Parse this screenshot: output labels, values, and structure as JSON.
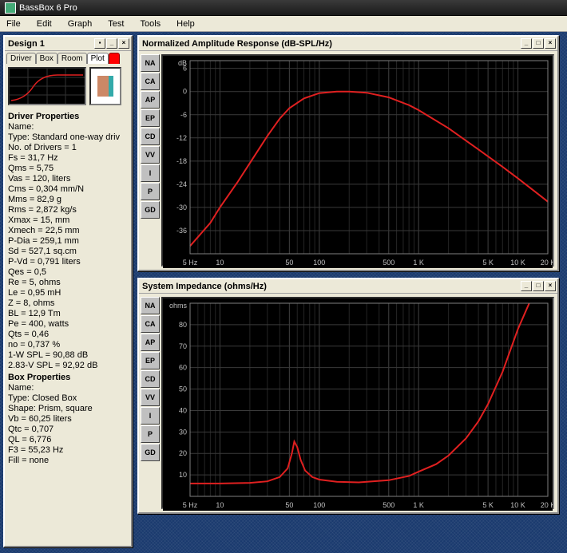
{
  "app": {
    "title": "BassBox 6 Pro",
    "menu": [
      "File",
      "Edit",
      "Graph",
      "Test",
      "Tools",
      "Help"
    ]
  },
  "design_panel": {
    "title": "Design 1",
    "tabs": [
      "Driver",
      "Box",
      "Room",
      "Plot"
    ],
    "active_tab": 3,
    "plot_color": "#ff0000",
    "driver_props": {
      "header": "Driver Properties",
      "lines": [
        "Name:",
        "Type: Standard one-way driv",
        "No. of Drivers = 1",
        "Fs = 31,7 Hz",
        "Qms = 5,75",
        "Vas = 120, liters",
        "Cms = 0,304 mm/N",
        "Mms = 82,9 g",
        "Rms = 2,872 kg/s",
        "Xmax = 15, mm",
        "Xmech = 22,5 mm",
        "P-Dia = 259,1 mm",
        "Sd = 527,1 sq.cm",
        "P-Vd = 0,791 liters",
        "Qes = 0,5",
        "Re = 5, ohms",
        "Le = 0,95 mH",
        "Z = 8, ohms",
        "BL = 12,9 Tm",
        "Pe = 400, watts",
        "Qts = 0,46",
        "no = 0,737 %",
        "1-W SPL = 90,88 dB",
        "2.83-V SPL = 92,92 dB"
      ]
    },
    "box_props": {
      "header": "Box Properties",
      "lines": [
        "Name:",
        "Type: Closed Box",
        "Shape: Prism, square",
        "Vb = 60,25 liters",
        "Qtc = 0,707",
        "QL = 6,776",
        "F3 = 55,23 Hz",
        "Fill = none"
      ]
    }
  },
  "side_buttons": [
    "NA",
    "CA",
    "AP",
    "EP",
    "CD",
    "VV",
    "I",
    "P",
    "GD"
  ],
  "amplitude_chart": {
    "title": "Normalized Amplitude Response (dB-SPL/Hz)",
    "y_unit": "dB",
    "y_ticks": [
      6,
      0,
      -6,
      -12,
      -18,
      -24,
      -30,
      -36
    ],
    "y_min": -42,
    "y_max": 8,
    "x_ticks": [
      {
        "v": 5,
        "label": "5 Hz"
      },
      {
        "v": 10,
        "label": "10"
      },
      {
        "v": 50,
        "label": "50"
      },
      {
        "v": 100,
        "label": "100"
      },
      {
        "v": 500,
        "label": "500"
      },
      {
        "v": 1000,
        "label": "1 K"
      },
      {
        "v": 5000,
        "label": "5 K"
      },
      {
        "v": 10000,
        "label": "10 K"
      },
      {
        "v": 20000,
        "label": "20 K"
      }
    ],
    "x_min": 5,
    "x_max": 20000,
    "data": [
      {
        "x": 5,
        "y": -40
      },
      {
        "x": 8,
        "y": -34
      },
      {
        "x": 10,
        "y": -30
      },
      {
        "x": 15,
        "y": -23.5
      },
      {
        "x": 20,
        "y": -18.5
      },
      {
        "x": 30,
        "y": -11.5
      },
      {
        "x": 40,
        "y": -7
      },
      {
        "x": 50,
        "y": -4.3
      },
      {
        "x": 70,
        "y": -1.8
      },
      {
        "x": 100,
        "y": -0.4
      },
      {
        "x": 150,
        "y": 0
      },
      {
        "x": 200,
        "y": 0
      },
      {
        "x": 300,
        "y": -0.3
      },
      {
        "x": 500,
        "y": -1.5
      },
      {
        "x": 800,
        "y": -3.5
      },
      {
        "x": 1000,
        "y": -4.8
      },
      {
        "x": 2000,
        "y": -9.5
      },
      {
        "x": 4000,
        "y": -15
      },
      {
        "x": 7000,
        "y": -19.5
      },
      {
        "x": 10000,
        "y": -22.5
      },
      {
        "x": 15000,
        "y": -26
      },
      {
        "x": 20000,
        "y": -28.5
      }
    ],
    "line_color": "#e02020",
    "grid_color": "#3a3a3a",
    "bg_color": "#000000"
  },
  "impedance_chart": {
    "title": "System Impedance (ohms/Hz)",
    "y_unit": "ohms",
    "y_ticks": [
      10,
      20,
      30,
      40,
      50,
      60,
      70,
      80
    ],
    "y_min": 0,
    "y_max": 90,
    "x_ticks": [
      {
        "v": 5,
        "label": "5 Hz"
      },
      {
        "v": 10,
        "label": "10"
      },
      {
        "v": 50,
        "label": "50"
      },
      {
        "v": 100,
        "label": "100"
      },
      {
        "v": 500,
        "label": "500"
      },
      {
        "v": 1000,
        "label": "1 K"
      },
      {
        "v": 5000,
        "label": "5 K"
      },
      {
        "v": 10000,
        "label": "10 K"
      },
      {
        "v": 20000,
        "label": "20 K"
      }
    ],
    "x_min": 5,
    "x_max": 20000,
    "data": [
      {
        "x": 5,
        "y": 6
      },
      {
        "x": 10,
        "y": 6
      },
      {
        "x": 20,
        "y": 6.3
      },
      {
        "x": 30,
        "y": 7
      },
      {
        "x": 40,
        "y": 9
      },
      {
        "x": 48,
        "y": 13
      },
      {
        "x": 53,
        "y": 20
      },
      {
        "x": 56,
        "y": 25.5
      },
      {
        "x": 60,
        "y": 23
      },
      {
        "x": 65,
        "y": 17
      },
      {
        "x": 72,
        "y": 12
      },
      {
        "x": 85,
        "y": 9
      },
      {
        "x": 100,
        "y": 7.8
      },
      {
        "x": 150,
        "y": 6.8
      },
      {
        "x": 250,
        "y": 6.5
      },
      {
        "x": 500,
        "y": 7.5
      },
      {
        "x": 800,
        "y": 9.5
      },
      {
        "x": 1000,
        "y": 11.5
      },
      {
        "x": 1500,
        "y": 15
      },
      {
        "x": 2000,
        "y": 19
      },
      {
        "x": 3000,
        "y": 27
      },
      {
        "x": 4000,
        "y": 35
      },
      {
        "x": 5000,
        "y": 43
      },
      {
        "x": 7000,
        "y": 58
      },
      {
        "x": 10000,
        "y": 78
      },
      {
        "x": 13000,
        "y": 90
      }
    ],
    "line_color": "#e02020",
    "grid_color": "#3a3a3a",
    "bg_color": "#000000"
  }
}
